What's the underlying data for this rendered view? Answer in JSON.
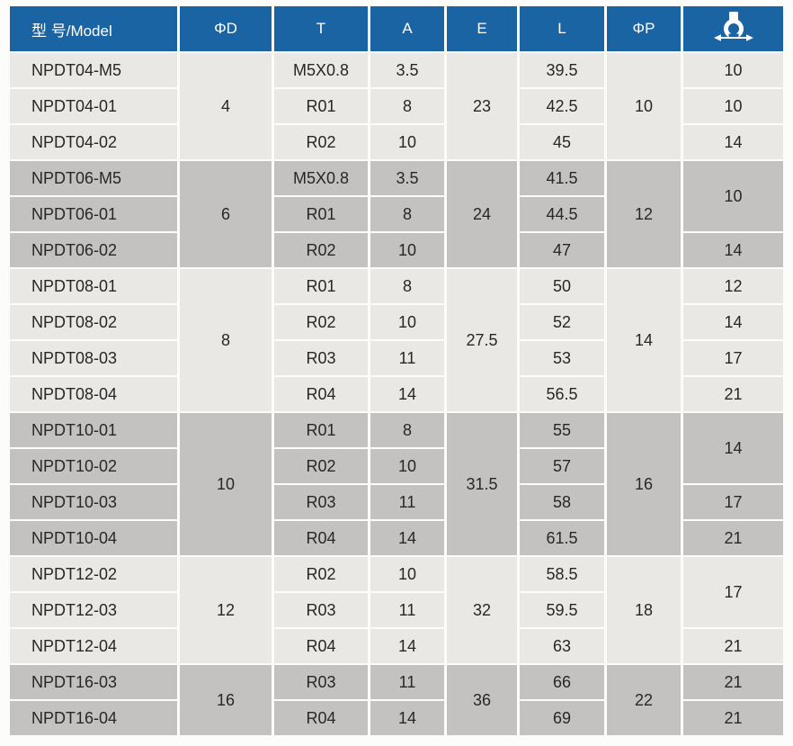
{
  "colors": {
    "header_bg": "#1b64a3",
    "row_light": "#e9e8e5",
    "row_dark": "#c3c2c0",
    "separator": "#fcfcfa",
    "text": "#272727",
    "header_text": "#ffffff"
  },
  "header": {
    "columns": [
      "型 号/Model",
      "ΦD",
      "T",
      "A",
      "E",
      "L",
      "ΦP"
    ],
    "last_column_icon": "wrench-width-icon"
  },
  "table": {
    "groups": [
      {
        "shade": "light",
        "d": "4",
        "e": "23",
        "p": "10",
        "rows": [
          {
            "model": "NPDT04-M5",
            "t": "M5X0.8",
            "a": "3.5",
            "l": "39.5"
          },
          {
            "model": "NPDT04-01",
            "t": "R01",
            "a": "8",
            "l": "42.5"
          },
          {
            "model": "NPDT04-02",
            "t": "R02",
            "a": "10",
            "l": "45"
          }
        ],
        "wrench": [
          {
            "v": "10",
            "span": 1
          },
          {
            "v": "10",
            "span": 1
          },
          {
            "v": "14",
            "span": 1
          }
        ]
      },
      {
        "shade": "dark",
        "d": "6",
        "e": "24",
        "p": "12",
        "rows": [
          {
            "model": "NPDT06-M5",
            "t": "M5X0.8",
            "a": "3.5",
            "l": "41.5"
          },
          {
            "model": "NPDT06-01",
            "t": "R01",
            "a": "8",
            "l": "44.5"
          },
          {
            "model": "NPDT06-02",
            "t": "R02",
            "a": "10",
            "l": "47"
          }
        ],
        "wrench": [
          {
            "v": "10",
            "span": 2
          },
          {
            "v": "14",
            "span": 1
          }
        ]
      },
      {
        "shade": "light",
        "d": "8",
        "e": "27.5",
        "p": "14",
        "rows": [
          {
            "model": "NPDT08-01",
            "t": "R01",
            "a": "8",
            "l": "50"
          },
          {
            "model": "NPDT08-02",
            "t": "R02",
            "a": "10",
            "l": "52"
          },
          {
            "model": "NPDT08-03",
            "t": "R03",
            "a": "11",
            "l": "53"
          },
          {
            "model": "NPDT08-04",
            "t": "R04",
            "a": "14",
            "l": "56.5"
          }
        ],
        "wrench": [
          {
            "v": "12",
            "span": 1
          },
          {
            "v": "14",
            "span": 1
          },
          {
            "v": "17",
            "span": 1
          },
          {
            "v": "21",
            "span": 1
          }
        ]
      },
      {
        "shade": "dark",
        "d": "10",
        "e": "31.5",
        "p": "16",
        "rows": [
          {
            "model": "NPDT10-01",
            "t": "R01",
            "a": "8",
            "l": "55"
          },
          {
            "model": "NPDT10-02",
            "t": "R02",
            "a": "10",
            "l": "57"
          },
          {
            "model": "NPDT10-03",
            "t": "R03",
            "a": "11",
            "l": "58"
          },
          {
            "model": "NPDT10-04",
            "t": "R04",
            "a": "14",
            "l": "61.5"
          }
        ],
        "wrench": [
          {
            "v": "14",
            "span": 2
          },
          {
            "v": "17",
            "span": 1
          },
          {
            "v": "21",
            "span": 1
          }
        ]
      },
      {
        "shade": "light",
        "d": "12",
        "e": "32",
        "p": "18",
        "rows": [
          {
            "model": "NPDT12-02",
            "t": "R02",
            "a": "10",
            "l": "58.5"
          },
          {
            "model": "NPDT12-03",
            "t": "R03",
            "a": "11",
            "l": "59.5"
          },
          {
            "model": "NPDT12-04",
            "t": "R04",
            "a": "14",
            "l": "63"
          }
        ],
        "wrench": [
          {
            "v": "17",
            "span": 2
          },
          {
            "v": "21",
            "span": 1
          }
        ]
      },
      {
        "shade": "dark",
        "d": "16",
        "e": "36",
        "p": "22",
        "rows": [
          {
            "model": "NPDT16-03",
            "t": "R03",
            "a": "11",
            "l": "66"
          },
          {
            "model": "NPDT16-04",
            "t": "R04",
            "a": "14",
            "l": "69"
          }
        ],
        "wrench": [
          {
            "v": "21",
            "span": 1
          },
          {
            "v": "21",
            "span": 1
          }
        ]
      }
    ]
  }
}
